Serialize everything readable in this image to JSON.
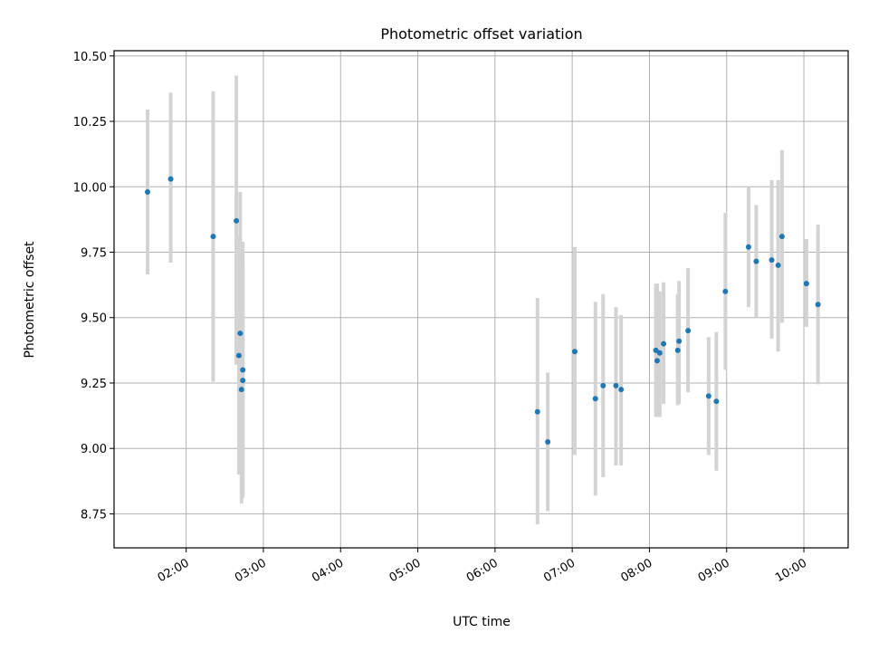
{
  "chart_data": {
    "type": "scatter",
    "title": "Photometric offset variation",
    "xlabel": "UTC time",
    "ylabel": "Photometric offset",
    "x_axis_type": "time",
    "xlim": [
      "01:30",
      "10:40"
    ],
    "ylim": [
      8.62,
      10.52
    ],
    "x_ticks": [
      "02:00",
      "03:00",
      "04:00",
      "05:00",
      "06:00",
      "07:00",
      "08:00",
      "09:00",
      "10:00"
    ],
    "y_ticks": [
      "8.75",
      "9.00",
      "9.25",
      "9.50",
      "9.75",
      "10.00",
      "10.25",
      "10.50"
    ],
    "grid": true,
    "marker_color": "#1f77b4",
    "errorbar_color": "#d3d3d3",
    "points": [
      {
        "x": "01:30",
        "y": 9.98,
        "lo": 9.665,
        "hi": 10.295
      },
      {
        "x": "01:48",
        "y": 10.03,
        "lo": 9.71,
        "hi": 10.36
      },
      {
        "x": "02:21",
        "y": 9.81,
        "lo": 9.255,
        "hi": 10.365
      },
      {
        "x": "02:39",
        "y": 9.87,
        "lo": 9.32,
        "hi": 10.425
      },
      {
        "x": "02:42",
        "y": 9.44,
        "lo": 8.9,
        "hi": 9.98
      },
      {
        "x": "02:41",
        "y": 9.355,
        "lo": 8.9,
        "hi": 9.81
      },
      {
        "x": "02:44",
        "y": 9.3,
        "lo": 8.82,
        "hi": 9.79
      },
      {
        "x": "02:44",
        "y": 9.26,
        "lo": 8.81,
        "hi": 9.7
      },
      {
        "x": "02:43",
        "y": 9.225,
        "lo": 8.79,
        "hi": 9.66
      },
      {
        "x": "06:33",
        "y": 9.14,
        "lo": 8.71,
        "hi": 9.575
      },
      {
        "x": "06:41",
        "y": 9.025,
        "lo": 8.76,
        "hi": 9.29
      },
      {
        "x": "07:02",
        "y": 9.37,
        "lo": 8.975,
        "hi": 9.77
      },
      {
        "x": "07:18",
        "y": 9.19,
        "lo": 8.82,
        "hi": 9.56
      },
      {
        "x": "07:24",
        "y": 9.24,
        "lo": 8.89,
        "hi": 9.59
      },
      {
        "x": "07:34",
        "y": 9.24,
        "lo": 8.935,
        "hi": 9.54
      },
      {
        "x": "07:38",
        "y": 9.225,
        "lo": 8.935,
        "hi": 9.51
      },
      {
        "x": "08:05",
        "y": 9.375,
        "lo": 9.12,
        "hi": 9.63
      },
      {
        "x": "08:06",
        "y": 9.335,
        "lo": 9.12,
        "hi": 9.63
      },
      {
        "x": "08:08",
        "y": 9.365,
        "lo": 9.12,
        "hi": 9.6
      },
      {
        "x": "08:11",
        "y": 9.4,
        "lo": 9.17,
        "hi": 9.635
      },
      {
        "x": "08:23",
        "y": 9.41,
        "lo": 9.17,
        "hi": 9.64
      },
      {
        "x": "08:22",
        "y": 9.375,
        "lo": 9.165,
        "hi": 9.59
      },
      {
        "x": "08:30",
        "y": 9.45,
        "lo": 9.215,
        "hi": 9.69
      },
      {
        "x": "08:46",
        "y": 9.2,
        "lo": 8.975,
        "hi": 9.425
      },
      {
        "x": "08:52",
        "y": 9.18,
        "lo": 8.915,
        "hi": 9.445
      },
      {
        "x": "08:59",
        "y": 9.6,
        "lo": 9.3,
        "hi": 9.9
      },
      {
        "x": "09:17",
        "y": 9.77,
        "lo": 9.54,
        "hi": 10.0
      },
      {
        "x": "09:23",
        "y": 9.715,
        "lo": 9.5,
        "hi": 9.93
      },
      {
        "x": "09:35",
        "y": 9.72,
        "lo": 9.42,
        "hi": 10.025
      },
      {
        "x": "09:40",
        "y": 9.7,
        "lo": 9.37,
        "hi": 10.025
      },
      {
        "x": "09:43",
        "y": 9.81,
        "lo": 9.48,
        "hi": 10.14
      },
      {
        "x": "10:02",
        "y": 9.63,
        "lo": 9.465,
        "hi": 9.8
      },
      {
        "x": "10:11",
        "y": 9.55,
        "lo": 9.245,
        "hi": 9.855
      }
    ]
  }
}
